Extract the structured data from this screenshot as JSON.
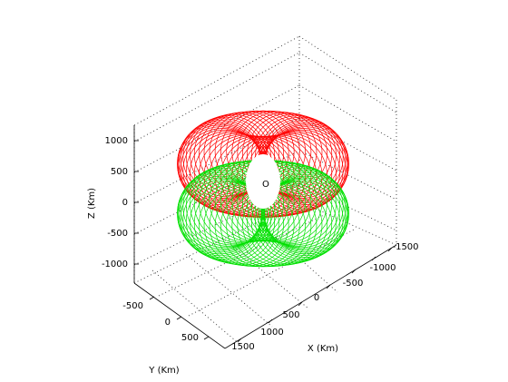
{
  "chart_data": {
    "type": "line3d",
    "title": "",
    "xlabel": "X (Km)",
    "ylabel": "Y (Km)",
    "zlabel": "Z (Km)",
    "xlim": [
      -1500,
      1500
    ],
    "ylim": [
      -500,
      500
    ],
    "zlim": [
      -1000,
      1000
    ],
    "x_ticks": [
      "-1500",
      "-1000",
      "-500",
      "0",
      "500",
      "1000",
      "1500"
    ],
    "y_ticks": [
      "-500",
      "0",
      "500"
    ],
    "z_ticks": [
      "1000",
      "500",
      "0",
      "-500",
      "-1000"
    ],
    "grid": true,
    "annotations": [
      {
        "label": "O",
        "x": 0,
        "y": 0,
        "z": 0
      }
    ],
    "series": [
      {
        "color": "#ff0000",
        "orbit_center_z_km": 400,
        "loop_radius_km": 700,
        "loop_count": 48
      },
      {
        "color": "#00e000",
        "orbit_center_z_km": -400,
        "loop_radius_km": 700,
        "loop_count": 48
      }
    ]
  }
}
